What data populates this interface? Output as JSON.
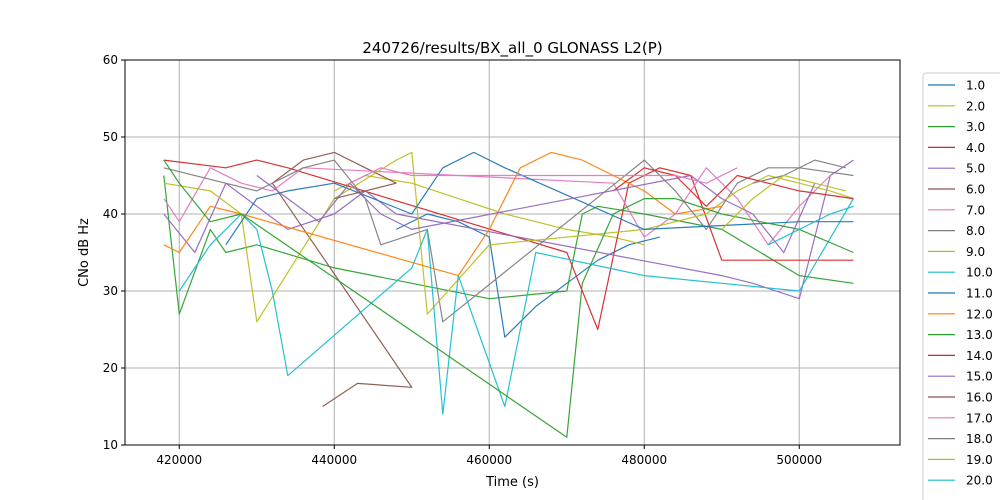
{
  "chart_data": {
    "type": "line",
    "title": "240726/results/BX_all_0 GLONASS L2(P)",
    "xlabel": "Time (s)",
    "ylabel": "CNo dB Hz",
    "xlim": [
      413000,
      513000
    ],
    "ylim": [
      10,
      60
    ],
    "x_ticks": [
      420000,
      440000,
      460000,
      480000,
      500000
    ],
    "y_ticks": [
      10,
      20,
      30,
      40,
      50,
      60
    ],
    "grid": true,
    "legend_position": "right, outside plot",
    "series": [
      {
        "name": "1.0",
        "color": "#1f77b4",
        "x": [
          448000,
          452000,
          456000,
          460000,
          462000,
          466000,
          470000,
          474000,
          478000,
          482000
        ],
        "y": [
          38,
          40,
          39,
          37,
          24,
          28,
          31,
          34,
          36,
          37
        ]
      },
      {
        "name": "2.0",
        "color": "#bcbd22",
        "x": [
          440000,
          444000,
          450000,
          456000,
          462000,
          470000,
          476000,
          480000
        ],
        "y": [
          43,
          45,
          44,
          42,
          40,
          38,
          37,
          36
        ]
      },
      {
        "name": "3.0",
        "color": "#2ca02c",
        "x": [
          418000,
          420000,
          424000,
          426000,
          430000,
          440000,
          450000,
          460000,
          470000,
          472000,
          474000,
          480000,
          490000,
          500000,
          507000
        ],
        "y": [
          45,
          27,
          38,
          35,
          36,
          33,
          31,
          29,
          30,
          40,
          41,
          40,
          38,
          32,
          31
        ]
      },
      {
        "name": "4.0",
        "color": "#d62728",
        "x": [
          418000,
          426000,
          430000,
          434000,
          470000,
          474000,
          478000,
          482000,
          486000,
          490000,
          494000,
          500000,
          507000
        ],
        "y": [
          47,
          46,
          47,
          46,
          35,
          25,
          44,
          46,
          45,
          34,
          34,
          34,
          34
        ]
      },
      {
        "name": "5.0",
        "color": "#9467bd",
        "x": [
          418000,
          422000,
          426000,
          430000,
          434000,
          440000,
          444000,
          448000,
          490000,
          494000,
          500000,
          504000,
          507000
        ],
        "y": [
          40,
          35,
          44,
          41,
          38,
          40,
          43,
          40,
          32,
          31,
          29,
          45,
          47
        ]
      },
      {
        "name": "6.0",
        "color": "#8c564b",
        "x": [
          438500,
          443000,
          450000,
          432000,
          436000,
          440000,
          444000,
          448000
        ],
        "y": [
          15,
          18,
          17.5,
          44,
          47,
          48,
          46,
          44
        ]
      },
      {
        "name": "7.0",
        "color": "#e377c2",
        "x": [
          418000,
          420000,
          424000,
          428000,
          432000,
          436000,
          476000,
          480000,
          484000,
          488000,
          492000,
          496000,
          500000,
          504000
        ],
        "y": [
          42,
          39,
          46,
          44,
          43,
          46,
          44,
          37,
          40,
          46,
          42,
          36,
          41,
          45
        ]
      },
      {
        "name": "8.0",
        "color": "#7f7f7f",
        "x": [
          418000,
          430000,
          436000,
          440000,
          444000,
          446000,
          452000,
          454000,
          480000,
          484000,
          488000,
          492000,
          496000,
          500000,
          507000
        ],
        "y": [
          46,
          43,
          46,
          47,
          42,
          36,
          38,
          26,
          47,
          43,
          38,
          44,
          46,
          46,
          45
        ]
      },
      {
        "name": "9.0",
        "color": "#bcbd22",
        "x": [
          418000,
          424000,
          428000,
          430000,
          440000,
          448000,
          450000,
          452000,
          460000,
          480000,
          488000,
          492000,
          496000,
          500000,
          504000,
          507000
        ],
        "y": [
          44,
          43,
          40,
          26,
          42,
          47,
          48,
          27,
          36,
          38,
          40,
          43,
          45,
          44,
          43,
          42
        ]
      },
      {
        "name": "10.0",
        "color": "#17becf",
        "x": [
          420000,
          424000,
          428000,
          430000,
          432000,
          434000,
          442000,
          450000,
          452000,
          454000,
          456000,
          462000,
          466000,
          480000,
          490000,
          500000,
          507000
        ],
        "y": [
          30,
          36,
          40,
          38,
          30,
          19,
          26,
          33,
          38,
          14,
          32,
          15,
          35,
          32,
          31,
          30,
          42
        ]
      },
      {
        "name": "11.0",
        "color": "#1f77b4",
        "x": [
          426000,
          430000,
          434000,
          440000,
          450000,
          454000,
          458000,
          462000,
          480000,
          500000,
          507000
        ],
        "y": [
          36,
          42,
          43,
          44,
          40,
          46,
          48,
          46,
          38,
          39,
          39
        ]
      },
      {
        "name": "12.0",
        "color": "#ff7f0e",
        "x": [
          418000,
          420000,
          422000,
          424000,
          428000,
          456000,
          460000,
          464000,
          468000,
          472000,
          476000,
          480000,
          484000,
          490000
        ],
        "y": [
          36,
          35,
          38,
          41,
          40,
          32,
          38,
          46,
          48,
          47,
          45,
          43,
          40,
          41
        ]
      },
      {
        "name": "13.0",
        "color": "#2ca02c",
        "x": [
          418000,
          420000,
          424000,
          428000,
          470000,
          472000,
          476000,
          480000,
          484000,
          490000,
          500000,
          507000
        ],
        "y": [
          47,
          44,
          39,
          40,
          11,
          31,
          40,
          42,
          42,
          40,
          38,
          35
        ]
      },
      {
        "name": "14.0",
        "color": "#d62728",
        "x": [
          476000,
          480000,
          484000,
          488000,
          492000,
          500000,
          507000
        ],
        "y": [
          43,
          46,
          45,
          41,
          45,
          43,
          42
        ]
      },
      {
        "name": "15.0",
        "color": "#9467bd",
        "x": [
          430000,
          434000,
          438000,
          442000,
          446000,
          450000,
          486000,
          490000,
          494000,
          498000,
          502000
        ],
        "y": [
          45,
          42,
          39,
          44,
          40,
          38,
          45,
          42,
          40,
          35,
          44
        ]
      },
      {
        "name": "16.0",
        "color": "#8c564b",
        "x": [
          440000,
          444000,
          448000
        ],
        "y": [
          42,
          43,
          44
        ]
      },
      {
        "name": "17.0",
        "color": "#e377c2",
        "x": [
          442000,
          446000,
          450000,
          484000,
          488000,
          492000
        ],
        "y": [
          44,
          46,
          45,
          45,
          44,
          46
        ]
      },
      {
        "name": "18.0",
        "color": "#7f7f7f",
        "x": [
          494000,
          498000,
          502000,
          506000
        ],
        "y": [
          44,
          45,
          47,
          46
        ]
      },
      {
        "name": "19.0",
        "color": "#bcbd22",
        "x": [
          490000,
          494000,
          498000,
          502000,
          506000
        ],
        "y": [
          38,
          42,
          45,
          44,
          43
        ]
      },
      {
        "name": "20.0",
        "color": "#17becf",
        "x": [
          496000,
          500000,
          504000,
          507000
        ],
        "y": [
          36,
          38,
          40,
          41
        ]
      }
    ]
  },
  "legend": {
    "entries": [
      "1.0",
      "2.0",
      "3.0",
      "4.0",
      "5.0",
      "6.0",
      "7.0",
      "8.0",
      "9.0",
      "10.0",
      "11.0",
      "12.0",
      "13.0",
      "14.0",
      "15.0",
      "16.0",
      "17.0",
      "18.0",
      "19.0",
      "20.0"
    ]
  }
}
